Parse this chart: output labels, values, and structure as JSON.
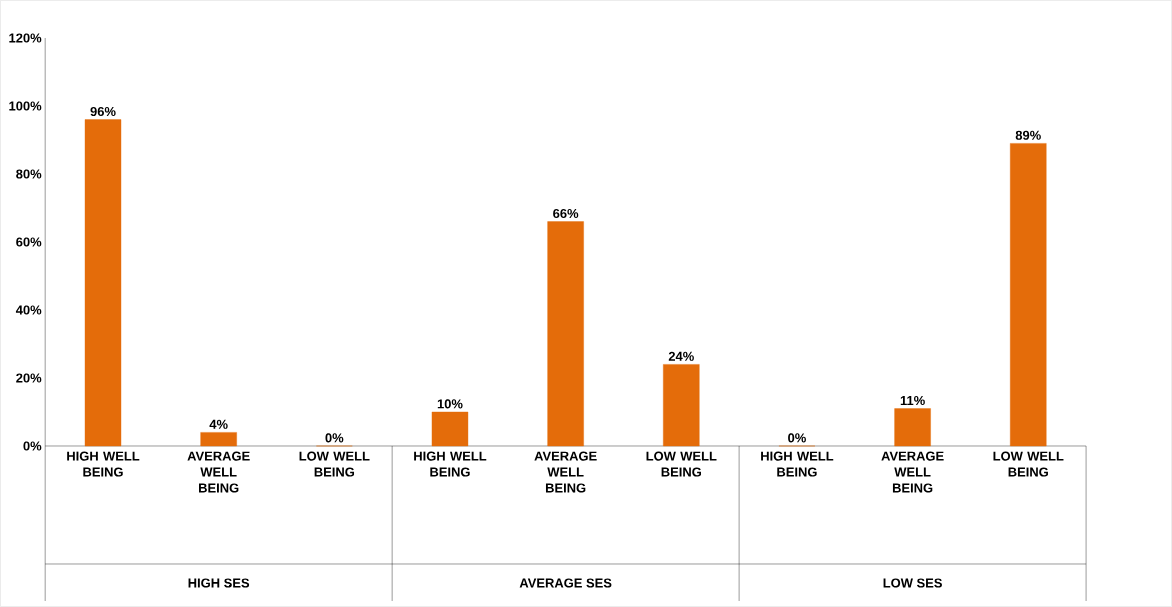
{
  "chart_data": {
    "type": "bar",
    "categories": [
      "HIGH WELL BEING",
      "AVERAGE WELL BEING",
      "LOW WELL BEING",
      "HIGH WELL BEING",
      "AVERAGE WELL BEING",
      "LOW WELL BEING",
      "HIGH WELL BEING",
      "AVERAGE WELL BEING",
      "LOW WELL BEING"
    ],
    "values": [
      96,
      4,
      0,
      10,
      66,
      24,
      0,
      11,
      89
    ],
    "value_labels": [
      "96%",
      "4%",
      "0%",
      "10%",
      "66%",
      "24%",
      "0%",
      "11%",
      "89%"
    ],
    "color": "#e46c0a",
    "ylim": [
      0,
      120
    ],
    "yticks": [
      {
        "value": 0,
        "label": "0%"
      },
      {
        "value": 20,
        "label": "20%"
      },
      {
        "value": 40,
        "label": "40%"
      },
      {
        "value": 60,
        "label": "60%"
      },
      {
        "value": 80,
        "label": "80%"
      },
      {
        "value": 100,
        "label": "100%"
      },
      {
        "value": 120,
        "label": "120%"
      }
    ],
    "annotations": [
      "HIGH SES",
      "AVERAGE SES",
      "LOW SES"
    ],
    "grid": false
  }
}
